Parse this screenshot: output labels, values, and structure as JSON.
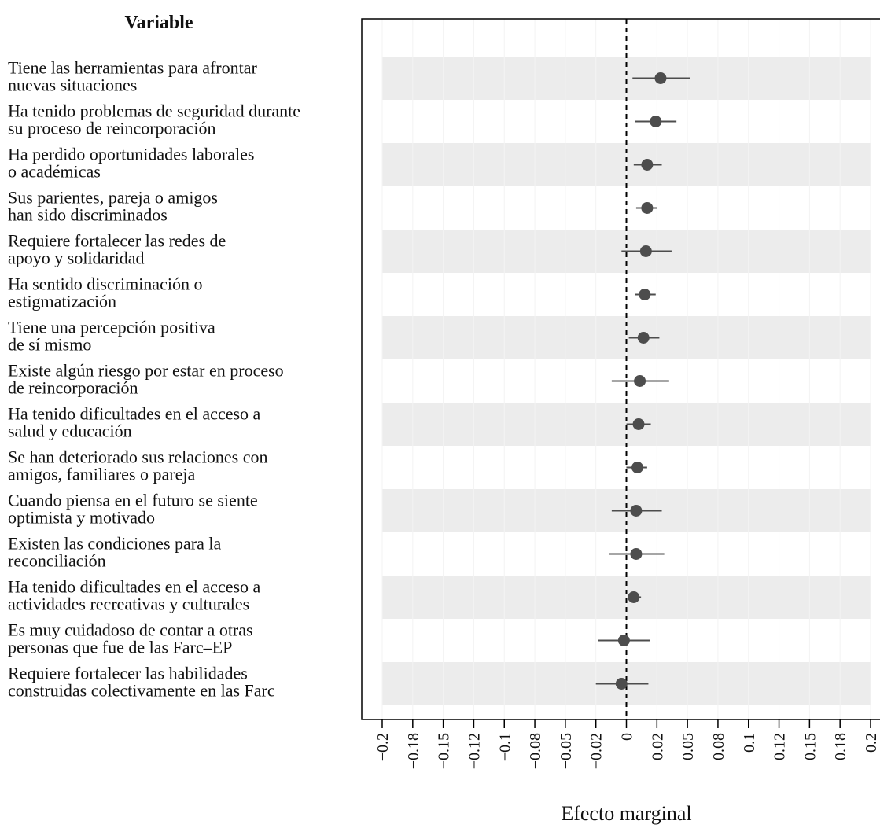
{
  "chart_data": {
    "type": "scatter",
    "subtype": "coefficient-plot",
    "title": "",
    "column_header": "Variable",
    "xlabel": "Efecto marginal",
    "ylabel": "",
    "xlim": [
      -0.2,
      0.2
    ],
    "x_ticks": [
      -0.2,
      -0.175,
      -0.15,
      -0.125,
      -0.1,
      -0.075,
      -0.05,
      -0.025,
      0,
      0.025,
      0.05,
      0.075,
      0.1,
      0.125,
      0.15,
      0.175,
      0.2
    ],
    "x_tick_labels": [
      "−0.2",
      "−0.18",
      "−0.15",
      "−0.12",
      "−0.1",
      "−0.08",
      "−0.05",
      "−0.02",
      "0",
      "0.02",
      "0.05",
      "0.08",
      "0.1",
      "0.12",
      "0.15",
      "0.18",
      "0.2"
    ],
    "reference_line": 0,
    "grid": true,
    "alternating_row_bands": true,
    "colors": {
      "point": "#4d4d4d",
      "band": "#ececec",
      "interval": "#4d4d4d",
      "ref_line": "#000000"
    },
    "rows": [
      {
        "label": [
          "Tiene las herramientas para afrontar",
          "nuevas situaciones"
        ],
        "estimate": 0.028,
        "lower": 0.005,
        "upper": 0.052
      },
      {
        "label": [
          "Ha tenido problemas de seguridad durante",
          "su proceso de reincorporación"
        ],
        "estimate": 0.024,
        "lower": 0.007,
        "upper": 0.041
      },
      {
        "label": [
          "Ha perdido oportunidades laborales",
          "o académicas"
        ],
        "estimate": 0.017,
        "lower": 0.006,
        "upper": 0.029
      },
      {
        "label": [
          "Sus parientes, pareja o amigos",
          "han sido discriminados"
        ],
        "estimate": 0.017,
        "lower": 0.008,
        "upper": 0.025
      },
      {
        "label": [
          "Requiere fortalecer las redes de",
          "apoyo y solidaridad"
        ],
        "estimate": 0.016,
        "lower": -0.004,
        "upper": 0.037
      },
      {
        "label": [
          "Ha sentido discriminación o",
          "estigmatización"
        ],
        "estimate": 0.015,
        "lower": 0.007,
        "upper": 0.024
      },
      {
        "label": [
          "Tiene una percepción positiva",
          "de sí mismo"
        ],
        "estimate": 0.014,
        "lower": 0.002,
        "upper": 0.027
      },
      {
        "label": [
          "Existe algún riesgo por estar en proceso",
          "de reincorporación"
        ],
        "estimate": 0.011,
        "lower": -0.012,
        "upper": 0.035
      },
      {
        "label": [
          "Ha tenido dificultades en el acceso a",
          "salud y educación"
        ],
        "estimate": 0.01,
        "lower": 0.0,
        "upper": 0.02
      },
      {
        "label": [
          "Se han deteriorado sus relaciones con",
          "amigos, familiares o pareja"
        ],
        "estimate": 0.009,
        "lower": 0.0,
        "upper": 0.017
      },
      {
        "label": [
          "Cuando piensa en el futuro se siente",
          "optimista y motivado"
        ],
        "estimate": 0.008,
        "lower": -0.012,
        "upper": 0.029
      },
      {
        "label": [
          "Existen las condiciones para la",
          "reconciliación"
        ],
        "estimate": 0.008,
        "lower": -0.014,
        "upper": 0.031
      },
      {
        "label": [
          "Ha tenido dificultades en el acceso a",
          "actividades recreativas y culturales"
        ],
        "estimate": 0.006,
        "lower": 0.002,
        "upper": 0.012
      },
      {
        "label": [
          "Es muy cuidadoso de contar a otras",
          "personas que fue de las Farc–EP"
        ],
        "estimate": -0.002,
        "lower": -0.023,
        "upper": 0.019
      },
      {
        "label": [
          "Requiere fortalecer las habilidades",
          "construidas colectivamente en las Farc"
        ],
        "estimate": -0.004,
        "lower": -0.025,
        "upper": 0.018
      }
    ]
  }
}
